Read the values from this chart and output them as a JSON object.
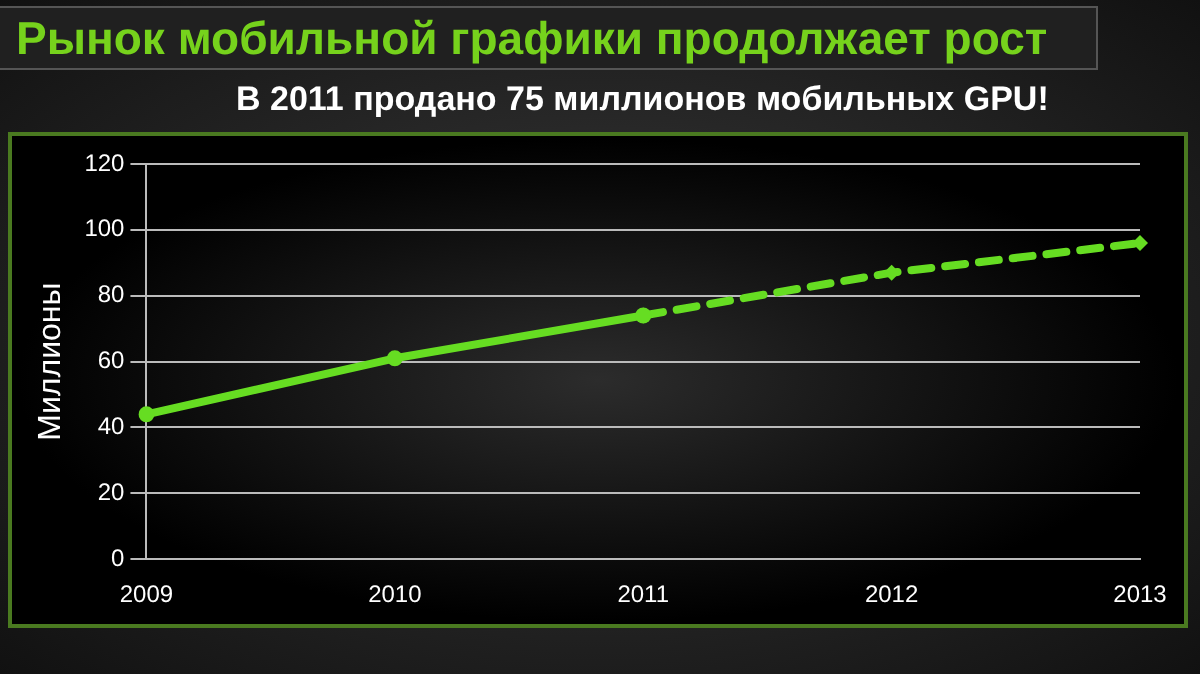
{
  "chart_data": {
    "type": "line",
    "title": "Рынок мобильной графики продолжает рост",
    "subtitle": "В 2011 продано 75 миллионов мобильных GPU!",
    "ylabel": "Миллионы",
    "categories": [
      "2009",
      "2010",
      "2011",
      "2012",
      "2013"
    ],
    "series": [
      {
        "color": "#66dd22",
        "values": [
          44,
          61,
          74,
          null,
          null
        ],
        "line_style": "solid",
        "marker": "circle"
      },
      {
        "color": "#66dd22",
        "values": [
          null,
          null,
          74,
          87,
          96
        ],
        "line_style": "dashed",
        "marker": "diamond"
      }
    ],
    "ylim": [
      0,
      120
    ],
    "yticks": [
      0,
      20,
      40,
      60,
      80,
      100,
      120
    ],
    "grid": "y",
    "legend": false
  }
}
